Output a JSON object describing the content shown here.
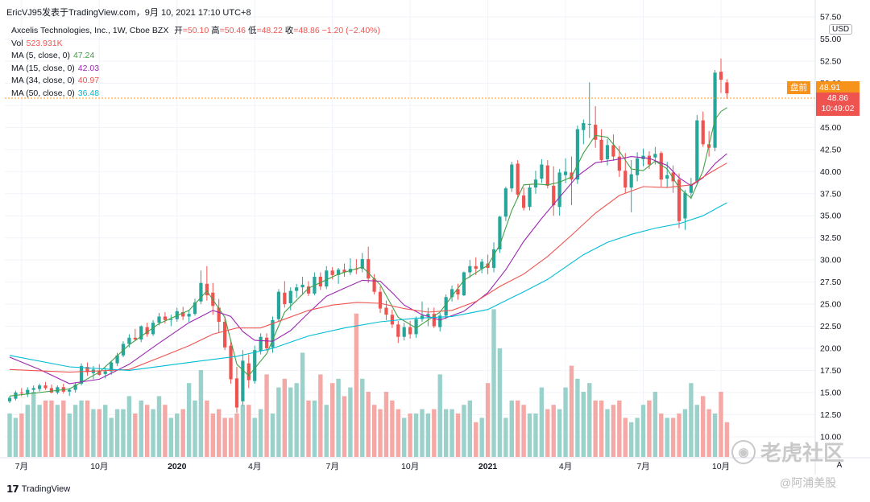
{
  "header": {
    "watermark_text": "EricVJ95发表于TradingView.com，9月 10, 2021 17:10 UTC+8"
  },
  "legend": {
    "symbol": "Axcelis Technologies, Inc., 1W, Cboe BZX",
    "open_label": "开",
    "open_value": "=50.10",
    "high_label": "高",
    "high_value": "=50.46",
    "low_label": "低",
    "low_value": "=48.22",
    "close_label": "收",
    "close_value": "=48.86",
    "change": "−1.20 (−2.40%)",
    "vol_label": "Vol",
    "vol_value": "523.931K",
    "ma": [
      {
        "label": "MA (5, close, 0)",
        "value": "47.24",
        "color": "#43a047"
      },
      {
        "label": "MA (15, close, 0)",
        "value": "42.03",
        "color": "#9c27b0"
      },
      {
        "label": "MA (34, close, 0)",
        "value": "40.97",
        "color": "#ef5350"
      },
      {
        "label": "MA (50, close, 0)",
        "value": "36.48",
        "color": "#00bcd4"
      }
    ]
  },
  "price_tags": {
    "premarket_label": "盘前",
    "premarket_value": "48.91",
    "last_price": "48.86",
    "countdown": "10:49:02",
    "currency": "USD"
  },
  "footer": {
    "tradingview": "TradingView",
    "watermark_main": "老虎社区",
    "watermark_sub": "@阿浦美股",
    "scale_button": "A"
  },
  "colors": {
    "up": "#26a69a",
    "down": "#ef5350",
    "vol_up": "#9ad2cb",
    "vol_down": "#f4a9a7",
    "premarket": "#f7931a"
  },
  "chart_data": {
    "type": "candlestick",
    "title": "Axcelis Technologies, Inc., 1W, Cboe BZX",
    "ylabel": "USD",
    "ylim": [
      8.8,
      57.6
    ],
    "y_ticks": [
      "57.50",
      "55.00",
      "52.50",
      "50.00",
      "47.50",
      "45.00",
      "42.50",
      "40.00",
      "37.50",
      "35.00",
      "32.50",
      "30.00",
      "27.50",
      "25.00",
      "22.50",
      "20.00",
      "17.50",
      "15.00",
      "12.50",
      "10.00"
    ],
    "x_ticks": [
      {
        "label": "7月",
        "week": 2
      },
      {
        "label": "10月",
        "week": 15
      },
      {
        "label": "2020",
        "week": 28
      },
      {
        "label": "4月",
        "week": 41
      },
      {
        "label": "7月",
        "week": 54
      },
      {
        "label": "10月",
        "week": 67
      },
      {
        "label": "2021",
        "week": 80
      },
      {
        "label": "4月",
        "week": 93
      },
      {
        "label": "7月",
        "week": 106
      },
      {
        "label": "10月",
        "week": 119
      }
    ],
    "weeks_total": 121,
    "candles": [
      [
        14.0,
        14.6,
        13.8,
        14.4
      ],
      [
        14.3,
        15.2,
        14.1,
        15.0
      ],
      [
        15.0,
        15.5,
        14.6,
        14.9
      ],
      [
        14.8,
        15.6,
        14.5,
        15.3
      ],
      [
        15.3,
        15.8,
        15.0,
        15.5
      ],
      [
        15.4,
        16.0,
        15.1,
        15.8
      ],
      [
        15.8,
        16.2,
        15.3,
        15.5
      ],
      [
        15.5,
        15.9,
        14.9,
        15.0
      ],
      [
        15.0,
        15.8,
        14.8,
        15.6
      ],
      [
        15.6,
        16.0,
        14.9,
        15.1
      ],
      [
        15.1,
        15.5,
        14.6,
        15.3
      ],
      [
        15.3,
        16.1,
        15.0,
        15.9
      ],
      [
        16.0,
        18.3,
        15.8,
        18.0
      ],
      [
        17.9,
        18.4,
        16.9,
        17.3
      ],
      [
        17.2,
        18.0,
        16.5,
        17.6
      ],
      [
        17.5,
        18.2,
        16.9,
        17.0
      ],
      [
        17.1,
        17.8,
        16.6,
        17.4
      ],
      [
        17.4,
        18.6,
        17.0,
        18.4
      ],
      [
        18.3,
        19.5,
        18.0,
        19.2
      ],
      [
        19.2,
        20.8,
        19.0,
        20.5
      ],
      [
        20.5,
        21.6,
        20.1,
        21.2
      ],
      [
        21.2,
        22.2,
        20.8,
        21.0
      ],
      [
        21.0,
        22.6,
        20.7,
        22.5
      ],
      [
        22.4,
        22.9,
        21.3,
        21.6
      ],
      [
        21.6,
        23.2,
        21.4,
        22.9
      ],
      [
        22.9,
        24.0,
        22.6,
        23.6
      ],
      [
        23.6,
        24.1,
        22.8,
        23.2
      ],
      [
        23.2,
        23.8,
        22.5,
        23.3
      ],
      [
        23.3,
        24.6,
        23.0,
        24.2
      ],
      [
        24.1,
        24.7,
        23.2,
        23.6
      ],
      [
        23.6,
        24.3,
        23.0,
        23.9
      ],
      [
        23.9,
        25.6,
        23.7,
        25.2
      ],
      [
        25.3,
        28.8,
        25.0,
        27.4
      ],
      [
        27.3,
        29.3,
        25.4,
        26.0
      ],
      [
        26.3,
        27.4,
        23.8,
        24.8
      ],
      [
        24.6,
        25.6,
        21.8,
        23.0
      ],
      [
        23.0,
        23.6,
        19.8,
        20.1
      ],
      [
        20.3,
        21.0,
        16.0,
        16.5
      ],
      [
        16.6,
        17.9,
        12.7,
        13.3
      ],
      [
        14.0,
        19.8,
        13.5,
        18.6
      ],
      [
        18.3,
        19.3,
        15.5,
        16.4
      ],
      [
        16.3,
        20.3,
        16.0,
        19.8
      ],
      [
        19.7,
        21.7,
        19.3,
        21.3
      ],
      [
        21.2,
        21.7,
        19.7,
        20.0
      ],
      [
        20.1,
        23.6,
        19.5,
        23.2
      ],
      [
        23.3,
        26.7,
        23.0,
        26.4
      ],
      [
        26.3,
        27.6,
        24.6,
        25.0
      ],
      [
        25.1,
        26.9,
        24.3,
        26.5
      ],
      [
        26.5,
        27.3,
        25.7,
        26.9
      ],
      [
        26.9,
        28.1,
        26.1,
        27.2
      ],
      [
        27.0,
        27.6,
        25.9,
        26.2
      ],
      [
        26.2,
        28.6,
        26.0,
        28.1
      ],
      [
        28.1,
        28.6,
        26.6,
        27.0
      ],
      [
        27.0,
        29.3,
        26.7,
        28.8
      ],
      [
        28.8,
        29.2,
        27.8,
        28.3
      ],
      [
        28.3,
        29.1,
        27.3,
        28.9
      ],
      [
        28.9,
        29.6,
        28.1,
        28.6
      ],
      [
        28.6,
        30.2,
        28.3,
        29.0
      ],
      [
        29.0,
        30.1,
        28.4,
        28.9
      ],
      [
        29.0,
        30.8,
        28.6,
        30.1
      ],
      [
        30.1,
        31.5,
        27.4,
        27.9
      ],
      [
        27.9,
        28.4,
        26.1,
        26.4
      ],
      [
        26.4,
        27.0,
        24.0,
        24.5
      ],
      [
        24.6,
        25.4,
        23.2,
        23.8
      ],
      [
        23.8,
        24.4,
        22.3,
        22.7
      ],
      [
        22.7,
        23.1,
        20.6,
        21.3
      ],
      [
        21.3,
        22.9,
        20.9,
        22.4
      ],
      [
        22.4,
        23.1,
        21.1,
        21.6
      ],
      [
        21.6,
        23.6,
        21.2,
        23.3
      ],
      [
        23.3,
        25.3,
        23.0,
        23.7
      ],
      [
        23.6,
        24.6,
        22.5,
        23.9
      ],
      [
        23.9,
        24.6,
        22.3,
        22.5
      ],
      [
        22.4,
        24.0,
        21.9,
        23.7
      ],
      [
        23.7,
        26.1,
        23.3,
        25.8
      ],
      [
        25.8,
        27.1,
        25.3,
        26.7
      ],
      [
        26.7,
        27.3,
        25.5,
        26.1
      ],
      [
        26.0,
        28.7,
        25.9,
        28.6
      ],
      [
        28.6,
        30.0,
        28.0,
        29.3
      ],
      [
        29.3,
        30.3,
        28.3,
        29.0
      ],
      [
        29.0,
        30.1,
        28.5,
        29.8
      ],
      [
        29.6,
        30.6,
        28.4,
        29.1
      ],
      [
        29.1,
        32.0,
        28.6,
        31.2
      ],
      [
        31.2,
        35.0,
        30.8,
        34.9
      ],
      [
        34.9,
        38.3,
        34.4,
        38.1
      ],
      [
        38.1,
        41.1,
        37.7,
        40.8
      ],
      [
        40.9,
        41.3,
        37.0,
        37.4
      ],
      [
        37.3,
        38.2,
        35.6,
        35.9
      ],
      [
        36.0,
        38.6,
        35.6,
        38.2
      ],
      [
        38.2,
        40.1,
        37.5,
        39.1
      ],
      [
        39.2,
        41.4,
        38.7,
        40.8
      ],
      [
        40.7,
        41.3,
        38.1,
        38.4
      ],
      [
        38.4,
        40.6,
        35.0,
        36.2
      ],
      [
        36.0,
        40.3,
        35.0,
        39.9
      ],
      [
        39.6,
        41.5,
        38.7,
        40.0
      ],
      [
        39.9,
        41.7,
        36.2,
        39.1
      ],
      [
        39.1,
        45.2,
        38.6,
        44.8
      ],
      [
        44.7,
        45.9,
        43.1,
        45.5
      ],
      [
        45.3,
        50.1,
        43.8,
        45.4
      ],
      [
        45.3,
        47.4,
        42.7,
        43.6
      ],
      [
        43.6,
        44.8,
        41.0,
        41.3
      ],
      [
        41.4,
        43.7,
        40.7,
        43.0
      ],
      [
        43.0,
        44.2,
        41.2,
        41.7
      ],
      [
        41.7,
        42.9,
        39.4,
        40.1
      ],
      [
        40.1,
        42.1,
        37.6,
        38.2
      ],
      [
        38.2,
        41.3,
        35.4,
        39.7
      ],
      [
        39.6,
        42.2,
        38.9,
        41.5
      ],
      [
        41.4,
        42.6,
        40.6,
        41.8
      ],
      [
        41.8,
        42.3,
        40.3,
        40.8
      ],
      [
        41.6,
        42.8,
        40.8,
        42.0
      ],
      [
        42.1,
        42.3,
        38.3,
        39.1
      ],
      [
        39.2,
        41.1,
        38.2,
        39.6
      ],
      [
        39.9,
        40.7,
        37.6,
        38.9
      ],
      [
        39.1,
        39.8,
        33.6,
        34.4
      ],
      [
        34.7,
        37.9,
        33.4,
        37.6
      ],
      [
        37.6,
        39.3,
        36.9,
        38.6
      ],
      [
        38.9,
        46.4,
        38.6,
        45.8
      ],
      [
        45.8,
        46.8,
        42.8,
        43.1
      ],
      [
        43.1,
        44.6,
        41.7,
        42.7
      ],
      [
        42.7,
        51.5,
        42.3,
        51.2
      ],
      [
        51.3,
        52.8,
        48.9,
        50.4
      ],
      [
        50.1,
        50.46,
        48.22,
        48.86
      ]
    ],
    "volume": [
      10,
      9,
      10,
      12,
      15,
      12,
      13,
      13,
      12,
      13,
      10,
      12,
      13,
      13,
      11,
      11,
      12,
      9,
      11,
      11,
      14,
      10,
      13,
      12,
      11,
      14,
      12,
      9,
      10,
      11,
      17,
      13,
      20,
      13,
      10,
      11,
      9,
      9,
      10,
      12,
      12,
      9,
      11,
      19,
      10,
      16,
      18,
      16,
      17,
      24,
      13,
      13,
      19,
      12,
      17,
      18,
      14,
      16,
      33,
      18,
      15,
      12,
      11,
      15,
      13,
      11,
      9,
      10,
      10,
      11,
      10,
      11,
      19,
      11,
      11,
      10,
      12,
      13,
      8,
      9,
      17,
      34,
      25,
      9,
      13,
      13,
      12,
      10,
      10,
      16,
      11,
      12,
      11,
      16,
      21,
      18,
      15,
      17,
      13,
      13,
      11,
      12,
      13,
      9,
      8,
      9,
      12,
      13,
      15,
      10,
      9,
      9,
      10,
      11,
      17,
      12,
      14,
      11,
      10,
      15,
      8
    ],
    "ma5": [
      [
        0,
        14.6
      ],
      [
        10,
        15.4
      ],
      [
        15,
        17.3
      ],
      [
        20,
        20.4
      ],
      [
        25,
        22.8
      ],
      [
        30,
        24.3
      ],
      [
        33,
        26.5
      ],
      [
        36,
        23.5
      ],
      [
        38,
        18.2
      ],
      [
        40,
        16.9
      ],
      [
        43,
        19.4
      ],
      [
        46,
        24.1
      ],
      [
        50,
        26.8
      ],
      [
        55,
        28.4
      ],
      [
        59,
        29.2
      ],
      [
        62,
        27.2
      ],
      [
        65,
        23.5
      ],
      [
        68,
        22.3
      ],
      [
        72,
        24.1
      ],
      [
        76,
        27.7
      ],
      [
        80,
        29.4
      ],
      [
        82,
        31.7
      ],
      [
        84,
        35.6
      ],
      [
        86,
        38.5
      ],
      [
        88,
        38.6
      ],
      [
        90,
        38.5
      ],
      [
        92,
        38.8
      ],
      [
        94,
        39.4
      ],
      [
        96,
        42.1
      ],
      [
        98,
        44.1
      ],
      [
        100,
        43.9
      ],
      [
        102,
        42.3
      ],
      [
        104,
        40.3
      ],
      [
        106,
        40.1
      ],
      [
        108,
        41.2
      ],
      [
        110,
        40.3
      ],
      [
        112,
        38.2
      ],
      [
        114,
        37.0
      ],
      [
        116,
        40.1
      ],
      [
        118,
        45.9
      ],
      [
        119,
        46.8
      ],
      [
        120,
        47.24
      ]
    ],
    "ma15": [
      [
        0,
        19.0
      ],
      [
        5,
        17.6
      ],
      [
        10,
        16.0
      ],
      [
        15,
        16.5
      ],
      [
        20,
        18.2
      ],
      [
        25,
        20.6
      ],
      [
        30,
        22.9
      ],
      [
        34,
        24.3
      ],
      [
        37,
        23.6
      ],
      [
        39,
        21.9
      ],
      [
        41,
        20.9
      ],
      [
        44,
        20.8
      ],
      [
        47,
        22.0
      ],
      [
        50,
        24.0
      ],
      [
        53,
        25.9
      ],
      [
        56,
        26.8
      ],
      [
        59,
        27.7
      ],
      [
        62,
        27.6
      ],
      [
        64,
        26.3
      ],
      [
        66,
        24.9
      ],
      [
        69,
        23.8
      ],
      [
        72,
        23.2
      ],
      [
        76,
        24.2
      ],
      [
        80,
        26.3
      ],
      [
        83,
        28.9
      ],
      [
        86,
        32.1
      ],
      [
        89,
        34.7
      ],
      [
        92,
        37.1
      ],
      [
        95,
        39.5
      ],
      [
        98,
        41.0
      ],
      [
        101,
        41.3
      ],
      [
        104,
        41.7
      ],
      [
        107,
        41.5
      ],
      [
        110,
        40.7
      ],
      [
        112,
        39.3
      ],
      [
        114,
        38.4
      ],
      [
        116,
        39.3
      ],
      [
        118,
        40.9
      ],
      [
        120,
        42.03
      ]
    ],
    "ma34": [
      [
        0,
        17.6
      ],
      [
        10,
        17.3
      ],
      [
        20,
        17.6
      ],
      [
        26,
        19.2
      ],
      [
        30,
        20.3
      ],
      [
        34,
        21.6
      ],
      [
        38,
        22.3
      ],
      [
        42,
        22.3
      ],
      [
        46,
        23.3
      ],
      [
        50,
        24.3
      ],
      [
        54,
        24.9
      ],
      [
        58,
        25.2
      ],
      [
        62,
        25.1
      ],
      [
        66,
        24.5
      ],
      [
        70,
        24.1
      ],
      [
        74,
        24.3
      ],
      [
        78,
        25.3
      ],
      [
        82,
        27.0
      ],
      [
        86,
        28.4
      ],
      [
        90,
        30.4
      ],
      [
        94,
        32.8
      ],
      [
        98,
        35.3
      ],
      [
        102,
        37.3
      ],
      [
        106,
        38.3
      ],
      [
        110,
        38.2
      ],
      [
        114,
        38.5
      ],
      [
        117,
        39.8
      ],
      [
        120,
        40.97
      ]
    ],
    "ma50": [
      [
        0,
        19.2
      ],
      [
        10,
        17.9
      ],
      [
        20,
        17.5
      ],
      [
        30,
        18.4
      ],
      [
        38,
        19.1
      ],
      [
        44,
        20.0
      ],
      [
        50,
        21.4
      ],
      [
        56,
        22.3
      ],
      [
        62,
        23.0
      ],
      [
        68,
        23.4
      ],
      [
        74,
        23.6
      ],
      [
        80,
        24.4
      ],
      [
        86,
        26.4
      ],
      [
        90,
        27.8
      ],
      [
        96,
        30.6
      ],
      [
        100,
        32.0
      ],
      [
        104,
        32.9
      ],
      [
        108,
        33.6
      ],
      [
        112,
        34.1
      ],
      [
        116,
        35.0
      ],
      [
        120,
        36.48
      ]
    ]
  }
}
